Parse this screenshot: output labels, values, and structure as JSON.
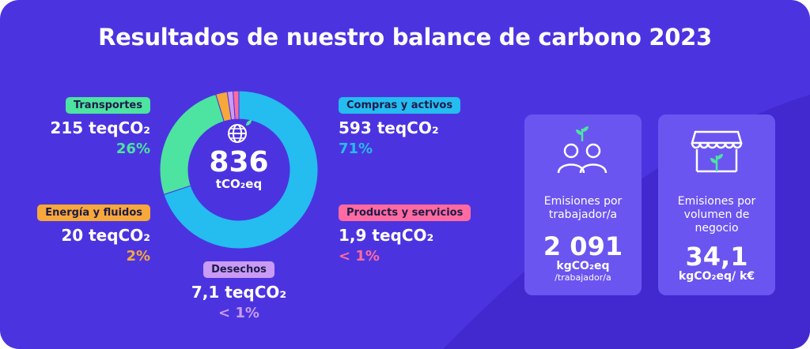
{
  "title": "Resultados de nuestro balance de carbono 2023",
  "total": {
    "value": "836",
    "unit": "tCO₂eq"
  },
  "categories": [
    {
      "label": "Transportes",
      "value": "215 teqCO₂",
      "percent": "26%",
      "color": "#4de3a0"
    },
    {
      "label": "Energía y fluidos",
      "value": "20 teqCO₂",
      "percent": "2%",
      "color": "#f7a83a"
    },
    {
      "label": "Desechos",
      "value": "7,1 teqCO₂",
      "percent": "< 1%",
      "color": "#c99bf5"
    },
    {
      "label": "Compras y activos",
      "value": "593 teqCO₂",
      "percent": "71%",
      "color": "#25bcf0"
    },
    {
      "label": "Products y servicios",
      "value": "1,9 teqCO₂",
      "percent": "< 1%",
      "color": "#ff6aa0"
    }
  ],
  "stats": [
    {
      "label": "Emisiones por trabajador/a",
      "value": "2 091",
      "unit": "kgCO₂eq",
      "sub": "/trabajador/a",
      "icon": "people-sprout-icon"
    },
    {
      "label": "Emisiones por volumen de negocio",
      "value": "34,1",
      "unit": "kgCO₂eq/ k€",
      "sub": "",
      "icon": "store-sprout-icon"
    }
  ],
  "chart_data": {
    "type": "pie",
    "donut": true,
    "title": "Resultados de nuestro balance de carbono 2023",
    "total": 836,
    "unit": "teqCO₂",
    "slices": [
      {
        "name": "Compras y activos",
        "value": 593,
        "percent": 71,
        "color": "#25bcf0"
      },
      {
        "name": "Transportes",
        "value": 215,
        "percent": 26,
        "color": "#4de3a0"
      },
      {
        "name": "Energía y fluidos",
        "value": 20,
        "percent": 2,
        "color": "#f7a83a"
      },
      {
        "name": "Desechos",
        "value": 7.1,
        "percent": 1,
        "color": "#c99bf5"
      },
      {
        "name": "Products y servicios",
        "value": 1.9,
        "percent": 1,
        "color": "#ff6aa0"
      }
    ]
  }
}
